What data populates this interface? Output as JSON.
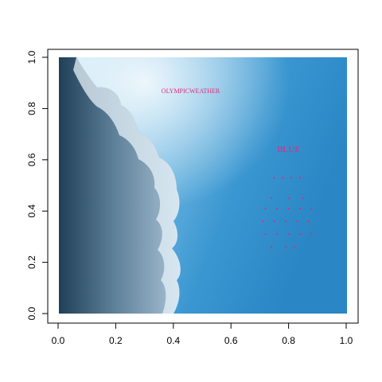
{
  "chart_data": {
    "type": "scatter",
    "title": "",
    "xlabel": "",
    "ylabel": "",
    "xlim": [
      0,
      1
    ],
    "ylim": [
      0,
      1
    ],
    "x_ticks": [
      "0.0",
      "0.2",
      "0.4",
      "0.6",
      "0.8",
      "1.0"
    ],
    "y_ticks": [
      "0.0",
      "0.2",
      "0.4",
      "0.6",
      "0.8",
      "1.0"
    ],
    "background": "photo of a billowing white cloud against a blue sky",
    "annotations": [
      {
        "text": "OLYMPICWEATHER",
        "x": 0.46,
        "y": 0.86
      },
      {
        "text": "BLUE",
        "x": 0.8,
        "y": 0.63
      }
    ],
    "points": [
      {
        "x": 0.75,
        "y": 0.53
      },
      {
        "x": 0.78,
        "y": 0.53
      },
      {
        "x": 0.81,
        "y": 0.53
      },
      {
        "x": 0.84,
        "y": 0.53
      },
      {
        "x": 0.74,
        "y": 0.45
      },
      {
        "x": 0.8,
        "y": 0.45
      },
      {
        "x": 0.85,
        "y": 0.45
      },
      {
        "x": 0.72,
        "y": 0.41
      },
      {
        "x": 0.76,
        "y": 0.41
      },
      {
        "x": 0.8,
        "y": 0.41
      },
      {
        "x": 0.84,
        "y": 0.41
      },
      {
        "x": 0.88,
        "y": 0.41
      },
      {
        "x": 0.71,
        "y": 0.36
      },
      {
        "x": 0.75,
        "y": 0.36
      },
      {
        "x": 0.79,
        "y": 0.36
      },
      {
        "x": 0.83,
        "y": 0.36
      },
      {
        "x": 0.87,
        "y": 0.36
      },
      {
        "x": 0.72,
        "y": 0.31
      },
      {
        "x": 0.76,
        "y": 0.31
      },
      {
        "x": 0.8,
        "y": 0.31
      },
      {
        "x": 0.84,
        "y": 0.31
      },
      {
        "x": 0.88,
        "y": 0.31
      },
      {
        "x": 0.74,
        "y": 0.26
      },
      {
        "x": 0.79,
        "y": 0.26
      },
      {
        "x": 0.82,
        "y": 0.26
      }
    ],
    "point_color": "#e0297a",
    "grid": false,
    "legend": "none"
  }
}
